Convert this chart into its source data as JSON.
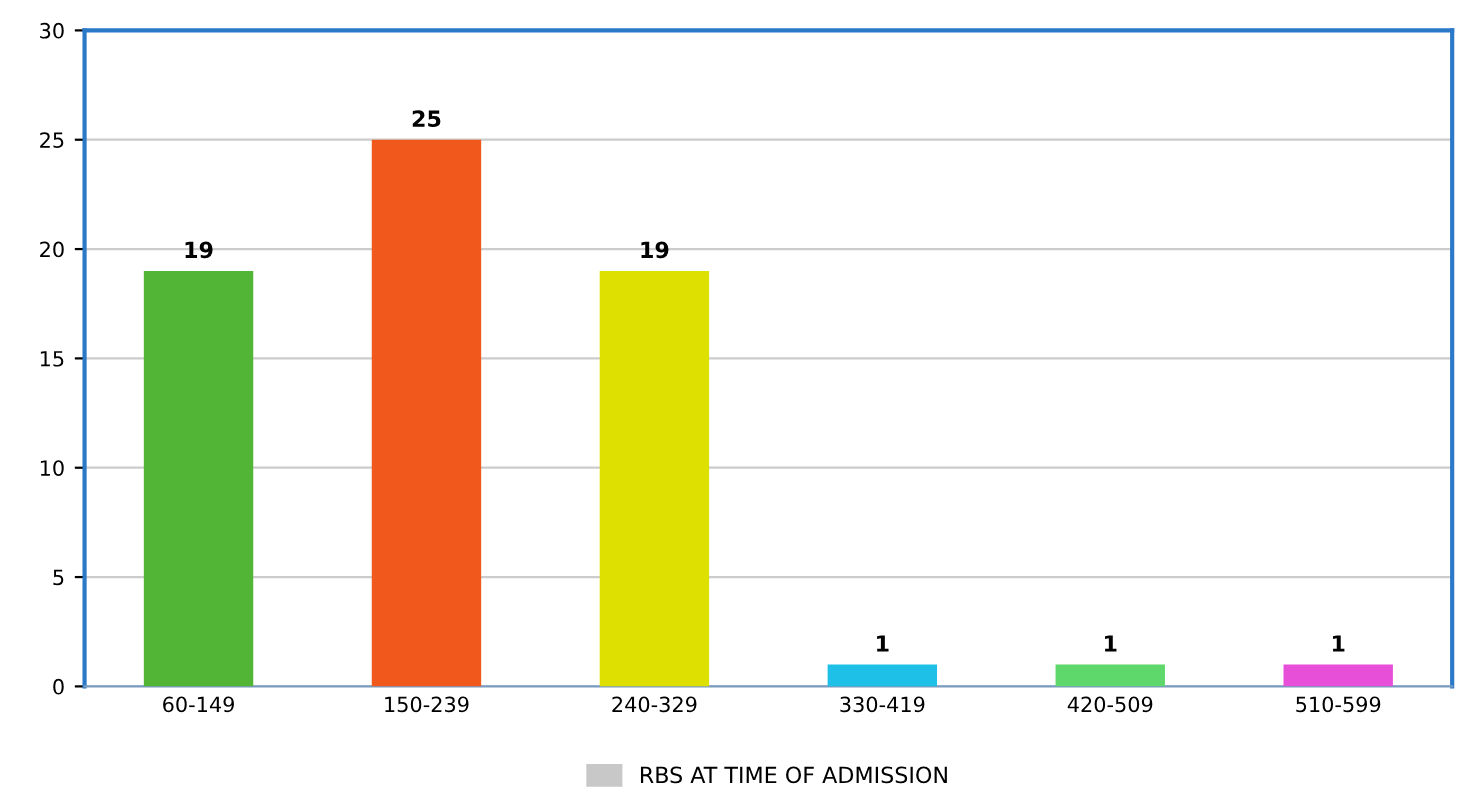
{
  "chart_data": {
    "type": "bar",
    "categories": [
      "60-149",
      "150-239",
      "240-329",
      "330-419",
      "420-509",
      "510-599"
    ],
    "series": [
      {
        "name": "RBS AT TIME OF ADMISSION",
        "color": "#c8c8c8",
        "colors": [
          "#53b535",
          "#f0581c",
          "#dde000",
          "#1ec0e8",
          "#5ed86a",
          "#e84fd8"
        ],
        "values": [
          19,
          25,
          19,
          1,
          1,
          1
        ]
      }
    ],
    "ylim": [
      0,
      30
    ],
    "yticks": [
      0,
      5,
      10,
      15,
      20,
      25,
      30
    ],
    "grid": "y",
    "legend": "bottom",
    "data_labels": true
  }
}
